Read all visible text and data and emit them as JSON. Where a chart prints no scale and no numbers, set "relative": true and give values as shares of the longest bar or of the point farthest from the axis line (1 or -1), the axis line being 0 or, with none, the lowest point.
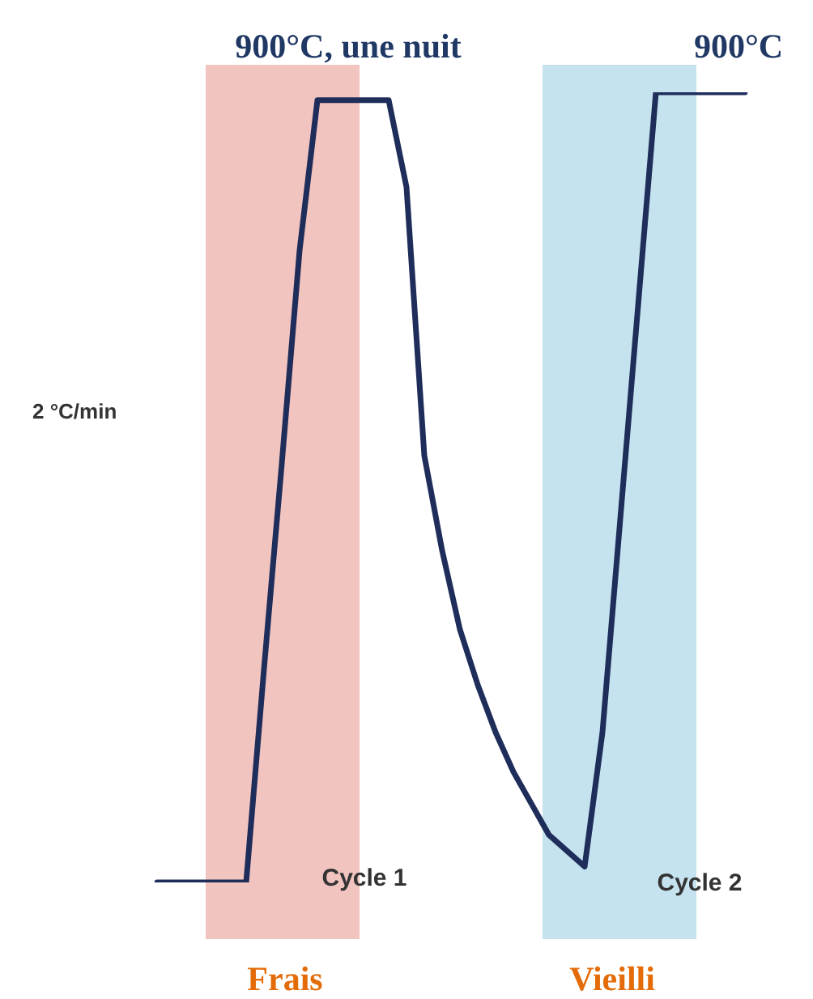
{
  "chart_data": {
    "type": "line",
    "relative": true,
    "legend": false,
    "marker": "none",
    "line_style": "solid",
    "categories": [
      null,
      null,
      null,
      null,
      null,
      null,
      null,
      null,
      null,
      null,
      null,
      null,
      null,
      null,
      null,
      null,
      null,
      null,
      null,
      null,
      null,
      null,
      null,
      null,
      null,
      null,
      null,
      null,
      null,
      null,
      null,
      null,
      null,
      null
    ],
    "series": [
      {
        "color": "#1f2d5a",
        "values": [
          0,
          0,
          0,
          0,
          0,
          0,
          0.27,
          0.53,
          0.8,
          0.99,
          0.99,
          0.99,
          0.99,
          0.99,
          0.88,
          0.54,
          0.42,
          0.32,
          0.25,
          0.19,
          0.14,
          0.1,
          0.06,
          0.04,
          0.02,
          0.19,
          0.46,
          0.73,
          1,
          1,
          1,
          1,
          1,
          1
        ]
      }
    ],
    "annotations": [
      "900°C, une nuit",
      "900°C",
      "2 °C/min",
      "Cycle 1",
      "Cycle 2",
      "Frais",
      "Vieilli"
    ]
  }
}
